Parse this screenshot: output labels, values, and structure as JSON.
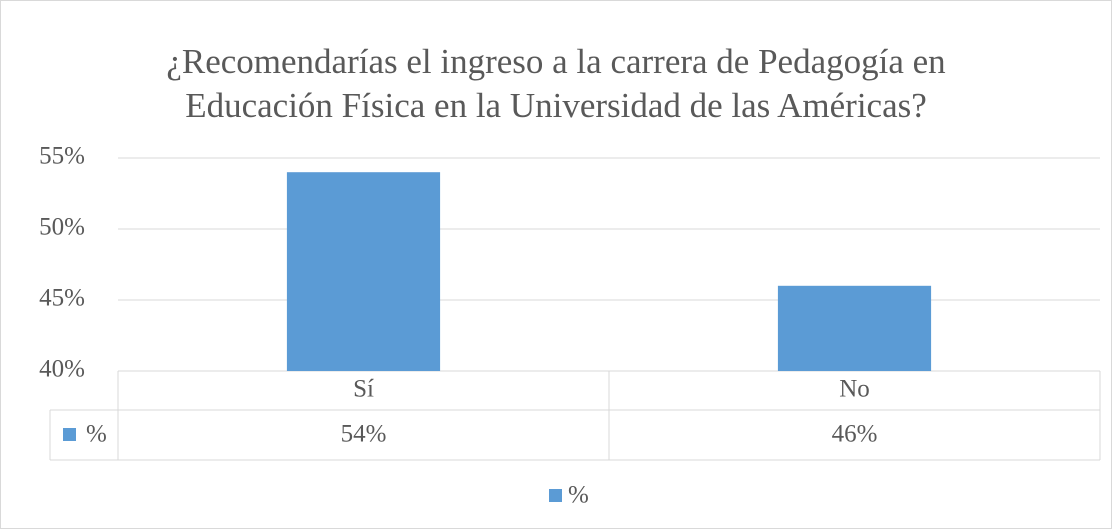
{
  "chart_data": {
    "type": "bar",
    "title": "¿Recomendarías el ingreso a la carrera de Pedagogía en Educación Física en la Universidad de las Américas?",
    "categories": [
      "Sí",
      "No"
    ],
    "series": [
      {
        "name": "%",
        "color": "#5b9bd5",
        "values": [
          54,
          46
        ],
        "value_labels": [
          "54%",
          "46%"
        ]
      }
    ],
    "ylim": [
      40,
      55
    ],
    "yticks": [
      {
        "value": 40,
        "label": "40%"
      },
      {
        "value": 45,
        "label": "45%"
      },
      {
        "value": 50,
        "label": "50%"
      },
      {
        "value": 55,
        "label": "55%"
      }
    ],
    "grid": true,
    "legend": "bottom",
    "data_table": true
  }
}
